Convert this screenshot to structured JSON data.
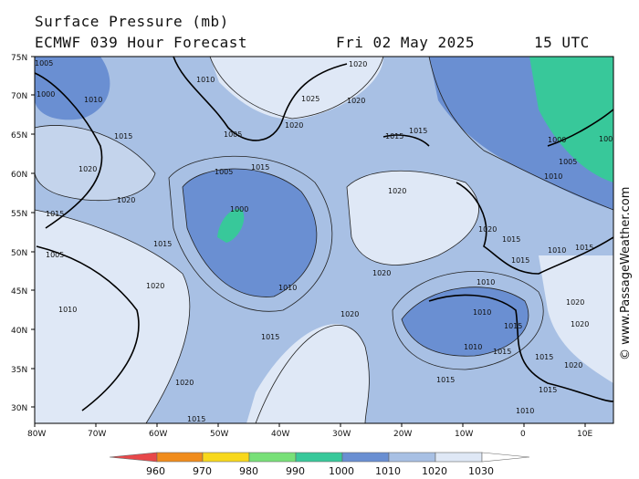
{
  "header": {
    "title_line1": "Surface Pressure (mb)",
    "title_line2": "ECMWF 039 Hour Forecast",
    "date": "Fri 02 May 2025",
    "utc": "15 UTC"
  },
  "credit": "© www.PassageWeather.com",
  "axes": {
    "lat_labels": [
      "75N",
      "70N",
      "65N",
      "60N",
      "55N",
      "50N",
      "45N",
      "40N",
      "35N",
      "30N"
    ],
    "lon_labels": [
      "80W",
      "70W",
      "60W",
      "50W",
      "40W",
      "30W",
      "20W",
      "10W",
      "0",
      "10E"
    ]
  },
  "legend": {
    "ticks": [
      "960",
      "970",
      "980",
      "990",
      "1000",
      "1010",
      "1020",
      "1030"
    ],
    "colors": [
      "#e8484a",
      "#f08c1c",
      "#f8d81c",
      "#78e078",
      "#38c89a",
      "#6a8fd2",
      "#a8c0e4",
      "#dfe8f6",
      "#ffffff"
    ]
  },
  "isobar_labels": [
    "1010",
    "1015",
    "1020",
    "1025",
    "1000",
    "1005"
  ]
}
